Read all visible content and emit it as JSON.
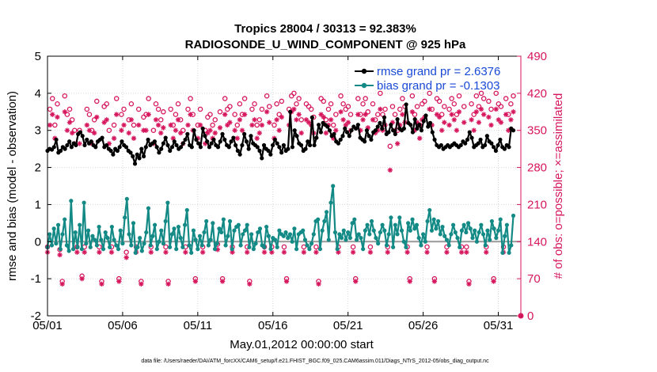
{
  "chart_data": {
    "type": "line",
    "title": "Tropics 28004 / 30313 = 92.383%",
    "subtitle": "RADIOSONDE_U_WIND_COMPONENT @ 925 hPa",
    "xlabel": "May.01,2012 00:00:00 start",
    "ylabel": "rmse and bias (model - observation)",
    "ylabel_right": "# of obs: o=possible; ×=assimilated",
    "footnote": "data file: /Users/raeder/DAI/ATM_forcXX/CAM6_setup/f.e21.FHIST_BGC.f09_025.CAM6assim.011/Diags_NTrS_2012-05/obs_diag_output.nc",
    "ylim": [
      -2,
      5
    ],
    "ylim_right": [
      0,
      490
    ],
    "xlim": [
      0,
      31.5
    ],
    "x_ticks": [
      0,
      5,
      10,
      15,
      20,
      25,
      30
    ],
    "x_tick_labels": [
      "05/01",
      "05/06",
      "05/11",
      "05/16",
      "05/21",
      "05/26",
      "05/31"
    ],
    "y_ticks": [
      -2,
      -1,
      0,
      1,
      2,
      3,
      4,
      5
    ],
    "y_tick_labels": [
      "-2",
      "-1",
      "0",
      "1",
      "2",
      "3",
      "4",
      "5"
    ],
    "y_ticks_right": [
      0,
      70,
      140,
      210,
      280,
      350,
      420,
      490
    ],
    "y_tick_labels_right": [
      "0",
      "70",
      "140",
      "210",
      "280",
      "350",
      "420",
      "490"
    ],
    "grid": true,
    "legend_position": "top-right",
    "series": [
      {
        "name": "rmse grand pr = 2.6376",
        "color": "#000000",
        "values": [
          2.45,
          2.5,
          2.48,
          2.55,
          2.75,
          2.4,
          2.45,
          2.55,
          2.5,
          2.6,
          2.7,
          2.55,
          2.65,
          2.6,
          2.9,
          2.95,
          2.85,
          2.6,
          2.75,
          2.65,
          2.7,
          2.6,
          2.55,
          2.7,
          2.75,
          2.8,
          2.55,
          2.6,
          2.5,
          2.45,
          2.35,
          2.5,
          2.45,
          2.55,
          2.7,
          2.6,
          2.55,
          2.45,
          2.4,
          2.3,
          2.1,
          2.35,
          2.25,
          2.5,
          2.3,
          2.55,
          2.75,
          2.6,
          2.65,
          2.7,
          2.55,
          2.4,
          2.5,
          2.65,
          2.8,
          2.6,
          2.45,
          2.55,
          2.7,
          2.6,
          2.5,
          2.55,
          2.65,
          2.75,
          2.9,
          2.6,
          2.55,
          3.0,
          2.75,
          2.65,
          2.55,
          3.05,
          2.85,
          2.7,
          2.55,
          2.65,
          2.75,
          2.6,
          2.55,
          2.7,
          2.9,
          2.75,
          2.6,
          2.55,
          2.7,
          2.8,
          2.6,
          2.45,
          2.35,
          2.6,
          2.9,
          2.7,
          2.5,
          2.85,
          2.65,
          2.6,
          2.55,
          2.45,
          2.25,
          2.6,
          2.5,
          2.45,
          2.35,
          2.6,
          2.75,
          2.65,
          2.55,
          2.4,
          2.6,
          2.45,
          2.5,
          3.5,
          2.55,
          3.0,
          2.85,
          2.65,
          2.6,
          2.45,
          2.5,
          2.7,
          2.6,
          3.35,
          2.6,
          2.8,
          3.15,
          2.95,
          3.2,
          3.15,
          3.1,
          3.0,
          2.85,
          2.9,
          2.7,
          2.65,
          2.75,
          2.85,
          3.05,
          2.95,
          2.85,
          3.0,
          3.1,
          3.05,
          3.15,
          2.8,
          2.75,
          2.7,
          3.0,
          2.85,
          2.75,
          2.95,
          3.0,
          3.1,
          3.2,
          3.05,
          3.35,
          2.9,
          2.95,
          3.15,
          3.0,
          2.9,
          3.3,
          3.05,
          3.0,
          3.05,
          3.7,
          3.2,
          3.15,
          2.95,
          3.3,
          3.05,
          3.15,
          3.0,
          3.25,
          3.4,
          3.1,
          3.2,
          2.95,
          2.75,
          2.6,
          2.55,
          2.6,
          2.5,
          2.55,
          2.6,
          2.55,
          2.6,
          2.65,
          2.6,
          2.55,
          2.6,
          2.7,
          2.65,
          2.75,
          2.95,
          2.8,
          2.55,
          2.6,
          2.65,
          2.75,
          2.55,
          2.6,
          2.85,
          2.7,
          2.65,
          2.55,
          2.45,
          2.6,
          2.75,
          2.55,
          2.5,
          2.6,
          2.55,
          3.05,
          3.0
        ]
      },
      {
        "name": "bias grand pr = -0.1303",
        "color": "#138a86",
        "values": [
          -0.15,
          0.2,
          -0.1,
          0.35,
          -0.05,
          0.45,
          -0.2,
          0.2,
          0.6,
          -0.1,
          -0.25,
          1.1,
          -0.2,
          0.25,
          -0.15,
          0.45,
          -0.2,
          1.05,
          -0.05,
          0.3,
          -0.15,
          0.15,
          0.05,
          -0.1,
          0.4,
          0.05,
          -0.2,
          0.25,
          0.1,
          -0.15,
          0.4,
          0.05,
          -0.1,
          -0.2,
          0.3,
          -0.05,
          0.65,
          1.15,
          0.2,
          -0.1,
          0.5,
          -0.3,
          -0.15,
          0.1,
          -0.25,
          -0.05,
          0.25,
          0.9,
          -0.1,
          0.15,
          0.45,
          -0.2,
          0.0,
          0.3,
          -0.05,
          0.55,
          1.05,
          -0.15,
          0.2,
          0.35,
          -0.2,
          0.4,
          0.1,
          -0.15,
          0.45,
          0.85,
          -0.1,
          -0.3,
          0.3,
          0.05,
          -0.2,
          0.15,
          -0.1,
          0.25,
          0.55,
          -0.1,
          0.05,
          0.5,
          -0.2,
          -0.05,
          0.35,
          0.25,
          0.6,
          -0.1,
          0.15,
          0.55,
          -0.2,
          0.3,
          0.4,
          0.45,
          -0.1,
          0.2,
          0.3,
          0.45,
          -0.15,
          0.2,
          -0.2,
          -0.05,
          0.25,
          0.35,
          -0.1,
          -0.15,
          0.4,
          0.15,
          -0.2,
          0.1,
          0.05,
          -0.15,
          0.3,
          0.2,
          0.15,
          0.25,
          0.1,
          0.2,
          0.0,
          0.35,
          -0.2,
          0.2,
          0.25,
          0.3,
          0.05,
          -0.1,
          -0.2,
          -0.05,
          0.2,
          0.55,
          0.6,
          -0.2,
          0.3,
          0.55,
          0.8,
          0.05,
          1.05,
          1.5,
          0.25,
          -0.2,
          0.2,
          0.1,
          0.3,
          0.05,
          0.25,
          0.1,
          0.5,
          0.6,
          0.05,
          0.2,
          0.1,
          -0.2,
          0.3,
          0.45,
          0.2,
          0.55,
          0.3,
          0.1,
          -0.05,
          0.25,
          0.45,
          0.3,
          -0.1,
          0.2,
          0.65,
          -0.15,
          0.45,
          0.2,
          0.65,
          0.3,
          0.0,
          -0.15,
          0.5,
          0.3,
          0.6,
          0.35,
          0.45,
          0.1,
          -0.1,
          0.2,
          0.0,
          0.55,
          0.85,
          0.3,
          0.6,
          0.35,
          0.55,
          0.2,
          0.4,
          0.15,
          0.05,
          -0.1,
          0.2,
          0.45,
          0.25,
          0.1,
          -0.15,
          0.3,
          0.45,
          0.25,
          0.5,
          0.35,
          0.1,
          0.3,
          0.0,
          0.25,
          0.45,
          0.2,
          -0.1,
          0.3,
          0.05,
          0.55,
          0.35,
          0.1,
          0.3,
          0.6,
          -0.3,
          0.15,
          0.45,
          -0.3,
          -0.1,
          0.7
        ]
      },
      {
        "name": "possible obs (o)",
        "color": "#d6165d",
        "marker": "circle",
        "values": [
          130,
          390,
          410,
          360,
          400,
          125,
          65,
          415,
          380,
          390,
          370,
          350,
          130,
          350,
          75,
          130,
          390,
          380,
          350,
          370,
          405,
          130,
          65,
          395,
          400,
          350,
          130,
          360,
          410,
          70,
          380,
          390,
          120,
          370,
          400,
          360,
          130,
          390,
          65,
          375,
          380,
          410,
          130,
          350,
          400,
          390,
          370,
          385,
          130,
          65,
          390,
          360,
          380,
          400,
          370,
          350,
          130,
          390,
          410,
          380,
          70,
          360,
          390,
          130,
          350,
          375,
          380,
          360,
          370,
          135,
          385,
          70,
          410,
          390,
          395,
          130,
          380,
          360,
          400,
          380,
          410,
          130,
          65,
          390,
          400,
          360,
          370,
          390,
          130,
          415,
          395,
          130,
          360,
          400,
          380,
          405,
          130,
          70,
          390,
          415,
          420,
          400,
          410,
          370,
          130,
          400,
          395,
          390,
          375,
          130,
          65,
          410,
          405,
          370,
          390,
          400,
          360,
          380,
          130,
          415,
          400,
          390,
          395,
          380,
          130,
          70,
          410,
          380,
          400,
          410,
          385,
          130,
          400,
          370,
          380,
          420,
          380,
          390,
          130,
          320,
          395,
          380,
          350,
          390,
          410,
          395,
          130,
          70,
          415,
          380,
          395,
          360,
          400,
          405,
          130,
          420,
          390,
          70,
          410,
          405,
          380,
          395,
          130,
          390,
          410,
          400,
          380,
          415,
          130,
          395,
          130,
          65,
          400,
          380,
          415,
          395,
          420,
          410,
          130,
          405,
          390,
          70,
          420,
          400,
          395,
          130,
          410,
          380,
          400,
          415
        ]
      },
      {
        "name": "assimilated obs (×)",
        "color": "#d6165d",
        "marker": "asterisk",
        "values": [
          120,
          360,
          380,
          335,
          375,
          115,
          60,
          385,
          350,
          365,
          345,
          325,
          120,
          325,
          70,
          120,
          360,
          350,
          325,
          345,
          375,
          120,
          60,
          365,
          370,
          325,
          120,
          335,
          380,
          65,
          350,
          360,
          110,
          345,
          370,
          335,
          120,
          360,
          60,
          350,
          350,
          380,
          120,
          325,
          370,
          360,
          345,
          355,
          120,
          60,
          360,
          335,
          350,
          370,
          345,
          325,
          120,
          360,
          380,
          350,
          65,
          335,
          360,
          120,
          325,
          345,
          350,
          335,
          345,
          125,
          355,
          65,
          380,
          360,
          365,
          120,
          350,
          335,
          370,
          350,
          380,
          120,
          60,
          360,
          370,
          335,
          345,
          360,
          120,
          385,
          365,
          120,
          335,
          370,
          350,
          375,
          120,
          65,
          360,
          385,
          390,
          370,
          380,
          345,
          120,
          370,
          365,
          360,
          345,
          120,
          60,
          380,
          375,
          345,
          360,
          370,
          335,
          350,
          120,
          385,
          370,
          360,
          365,
          350,
          120,
          65,
          380,
          350,
          370,
          380,
          355,
          120,
          370,
          345,
          350,
          390,
          350,
          360,
          120,
          275,
          365,
          350,
          325,
          360,
          380,
          365,
          120,
          65,
          385,
          350,
          365,
          335,
          370,
          375,
          120,
          390,
          360,
          65,
          380,
          375,
          350,
          365,
          120,
          360,
          380,
          370,
          350,
          385,
          120,
          365,
          120,
          60,
          370,
          350,
          385,
          365,
          390,
          380,
          120,
          375,
          360,
          65,
          390,
          370,
          365,
          120,
          380,
          350,
          370,
          385
        ]
      }
    ]
  }
}
